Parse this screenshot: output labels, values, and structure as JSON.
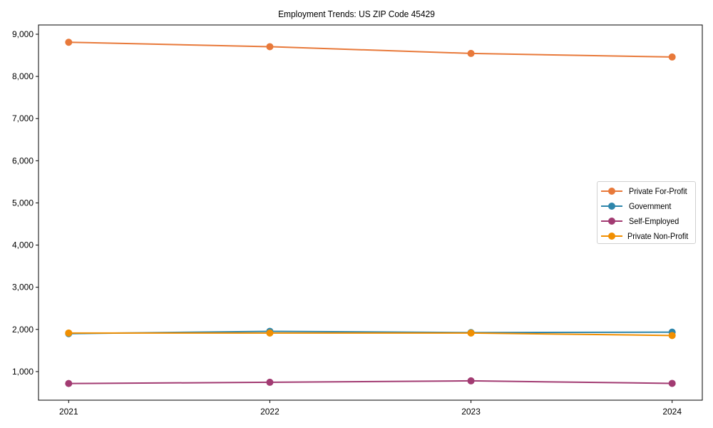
{
  "chart_data": {
    "type": "line",
    "title": "Employment Trends: US ZIP Code 45429",
    "xlabel": "",
    "ylabel": "",
    "categories": [
      "2021",
      "2022",
      "2023",
      "2024"
    ],
    "x": [
      2021,
      2022,
      2023,
      2024
    ],
    "series": [
      {
        "name": "Private For-Profit",
        "color": "#E8793A",
        "values": [
          8810,
          8705,
          8545,
          8460
        ]
      },
      {
        "name": "Government",
        "color": "#2E86AB",
        "values": [
          1900,
          1955,
          1925,
          1935
        ]
      },
      {
        "name": "Self-Employed",
        "color": "#A23B72",
        "values": [
          717,
          746,
          780,
          720
        ]
      },
      {
        "name": "Private Non-Profit",
        "color": "#F18F01",
        "values": [
          1915,
          1915,
          1915,
          1856
        ]
      }
    ],
    "yticks": [
      1000,
      2000,
      3000,
      4000,
      5000,
      6000,
      7000,
      8000,
      9000
    ],
    "ytick_labels": [
      "1,000",
      "2,000",
      "3,000",
      "4,000",
      "5,000",
      "6,000",
      "7,000",
      "8,000",
      "9,000"
    ],
    "ylim": [
      322,
      9220
    ],
    "grid": false,
    "legend_position": "center right",
    "markers": "circle"
  }
}
